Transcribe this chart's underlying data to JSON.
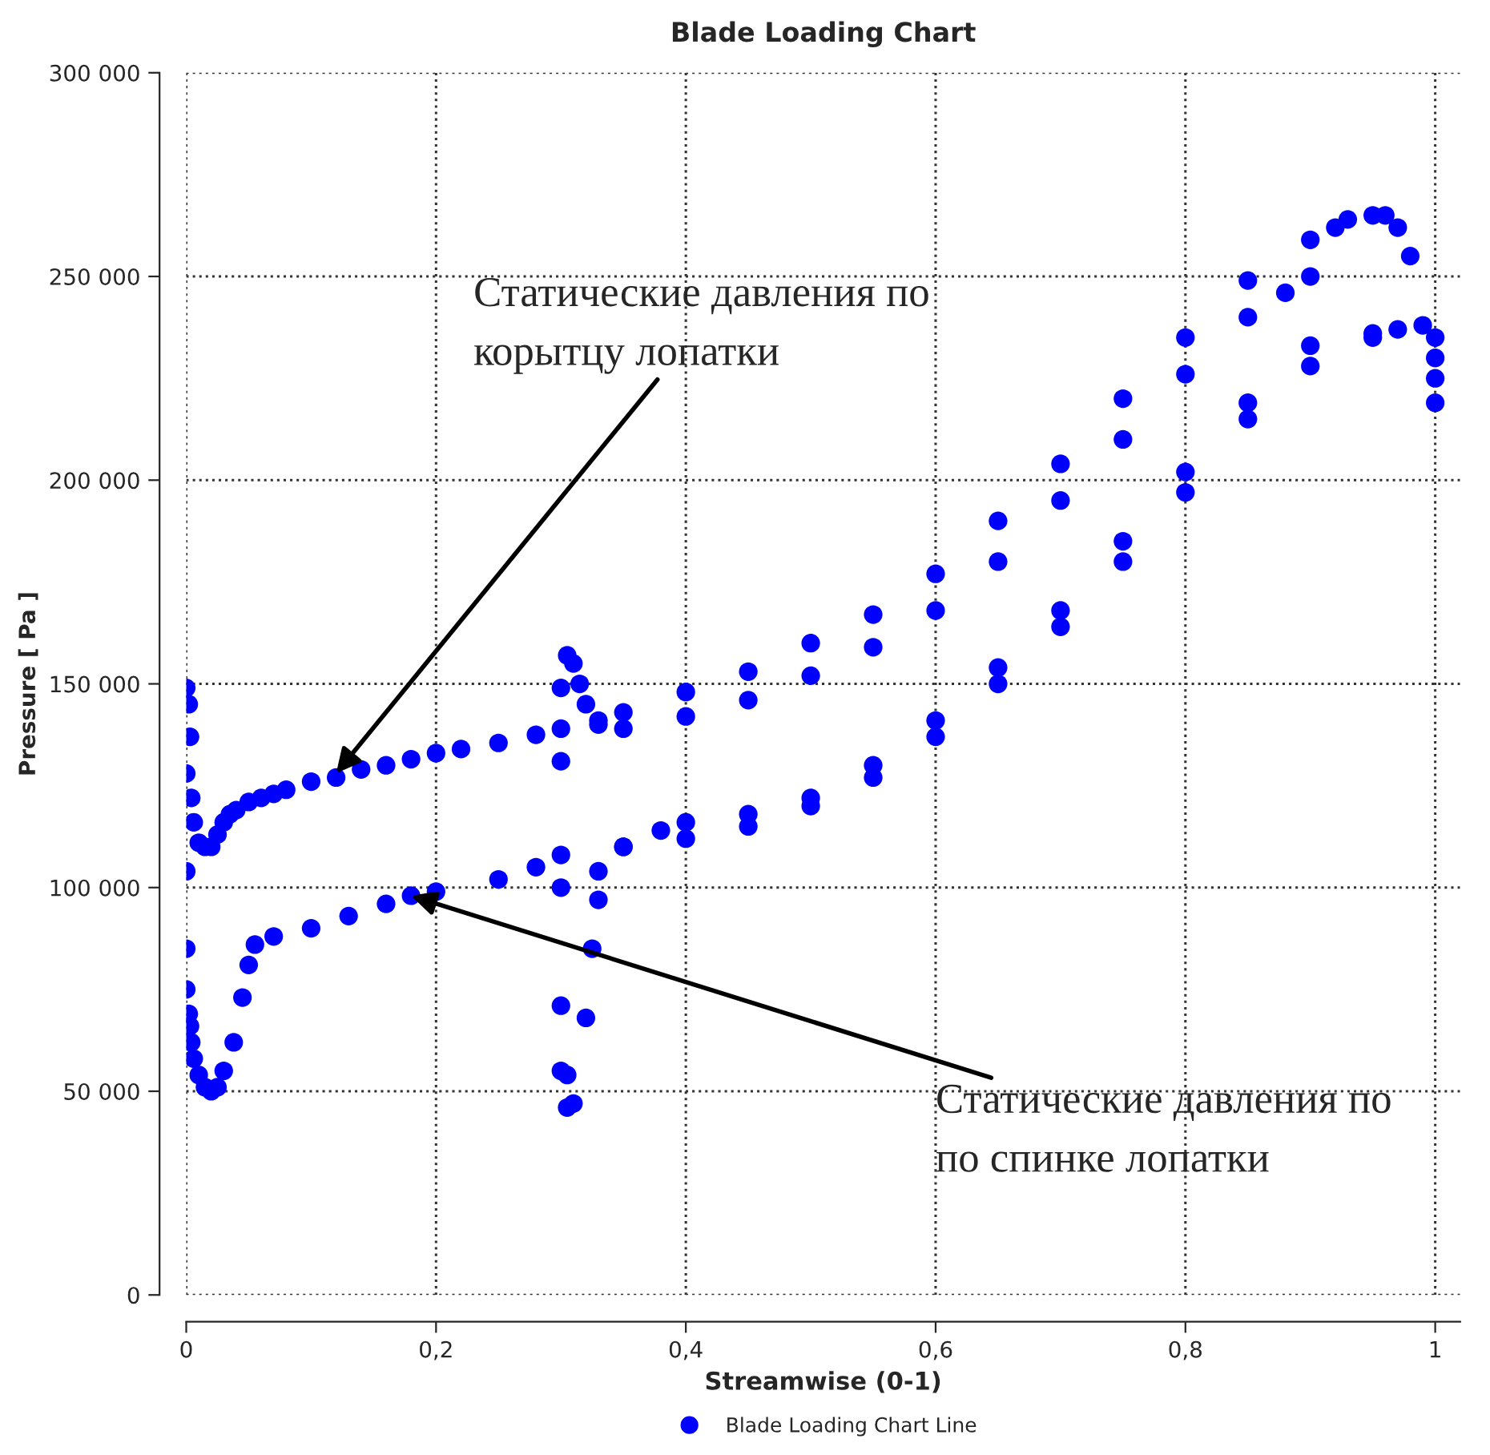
{
  "chart_data": {
    "type": "scatter",
    "title": "Blade Loading Chart",
    "xlabel": "Streamwise (0-1)",
    "ylabel": "Pressure [ Pa ]",
    "xlim": [
      0,
      1.02
    ],
    "ylim": [
      0,
      300000
    ],
    "xticks": [
      {
        "value": 0,
        "label": "0"
      },
      {
        "value": 0.2,
        "label": "0,2"
      },
      {
        "value": 0.4,
        "label": "0,4"
      },
      {
        "value": 0.6,
        "label": "0,6"
      },
      {
        "value": 0.8,
        "label": "0,8"
      },
      {
        "value": 1,
        "label": "1"
      }
    ],
    "yticks": [
      {
        "value": 0,
        "label": "0"
      },
      {
        "value": 50000,
        "label": "50 000"
      },
      {
        "value": 100000,
        "label": "100 000"
      },
      {
        "value": 150000,
        "label": "150 000"
      },
      {
        "value": 200000,
        "label": "200 000"
      },
      {
        "value": 250000,
        "label": "250 000"
      },
      {
        "value": 300000,
        "label": "300 000"
      }
    ],
    "grid": true,
    "legend": "bottom",
    "marker": "circle",
    "series": [
      {
        "name": "Blade Loading Chart Line",
        "color": "#0000ff",
        "x": [
          0,
          0,
          0.002,
          0.003,
          0,
          0.004,
          0.006,
          0.01,
          0.015,
          0.02,
          0.025,
          0.03,
          0.035,
          0.04,
          0.05,
          0.06,
          0.07,
          0.08,
          0.1,
          0.12,
          0.14,
          0.16,
          0.18,
          0.2,
          0.22,
          0.25,
          0.28,
          0.3,
          0.33,
          0.35,
          0.4,
          0.45,
          0.5,
          0.55,
          0.6,
          0.65,
          0.7,
          0.75,
          0.8,
          0.85,
          0.9,
          0.92,
          0.93,
          0.95,
          0.96,
          0.97,
          0.98,
          0.305,
          0.31,
          0.315,
          0.32,
          0.33,
          0.35,
          0.4,
          0.45,
          0.5,
          0.55,
          0.6,
          0.65,
          0.7,
          0.75,
          0.8,
          0.85,
          0.88,
          0.9,
          0.3,
          0.3,
          0,
          0,
          0.002,
          0.003,
          0.004,
          0.006,
          0.01,
          0.015,
          0.02,
          0.025,
          0.03,
          0.038,
          0.045,
          0.05,
          0.055,
          0.07,
          0.1,
          0.13,
          0.16,
          0.18,
          0.2,
          0.25,
          0.28,
          0.3,
          0.35,
          0.4,
          0.45,
          0.5,
          0.55,
          0.6,
          0.65,
          0.7,
          0.75,
          0.8,
          0.85,
          0.9,
          0.95,
          0.97,
          0.99,
          0.33,
          0.35,
          0.38,
          0.4,
          0.45,
          0.5,
          0.55,
          0.6,
          0.65,
          0.7,
          0.75,
          0.8,
          0.85,
          0.9,
          0.95,
          1,
          1,
          1,
          1,
          0.3,
          0.3,
          0.3,
          0.305,
          0.305,
          0.31,
          0.32,
          0.325,
          0.33
        ],
        "values": [
          104000,
          149000,
          145000,
          137000,
          128000,
          122000,
          116000,
          111000,
          110000,
          110000,
          113000,
          116000,
          118000,
          119000,
          121000,
          122000,
          123000,
          124000,
          126000,
          127000,
          129000,
          130000,
          131500,
          133000,
          134000,
          135500,
          137500,
          139000,
          141000,
          143000,
          148000,
          153000,
          160000,
          167000,
          177000,
          190000,
          204000,
          220000,
          235000,
          249000,
          259000,
          262000,
          264000,
          265000,
          265000,
          262000,
          255000,
          157000,
          155000,
          150000,
          145000,
          140000,
          139000,
          142000,
          146000,
          152000,
          159000,
          168000,
          180000,
          195000,
          210000,
          226000,
          240000,
          246000,
          250000,
          149000,
          131000,
          85000,
          75000,
          69000,
          66000,
          62000,
          58000,
          54000,
          51000,
          50000,
          51000,
          55000,
          62000,
          73000,
          81000,
          86000,
          88000,
          90000,
          93000,
          96000,
          98000,
          99000,
          102000,
          105000,
          108000,
          110000,
          112000,
          115000,
          120000,
          127000,
          137000,
          150000,
          164000,
          180000,
          197000,
          215000,
          228000,
          235000,
          237000,
          238000,
          104000,
          110000,
          114000,
          116000,
          118000,
          122000,
          130000,
          141000,
          154000,
          168000,
          185000,
          202000,
          219000,
          233000,
          236000,
          235000,
          230000,
          225000,
          219000,
          100000,
          71000,
          55000,
          54000,
          46000,
          47000,
          68000,
          85000,
          97000
        ]
      }
    ],
    "annotations": [
      {
        "text": "Статические давления по\nкорытцу лопатки",
        "x": 0.12,
        "y": 128000
      },
      {
        "text": "Статические давления по\nпо спинке лопатки",
        "x": 0.18,
        "y": 98000
      }
    ]
  }
}
